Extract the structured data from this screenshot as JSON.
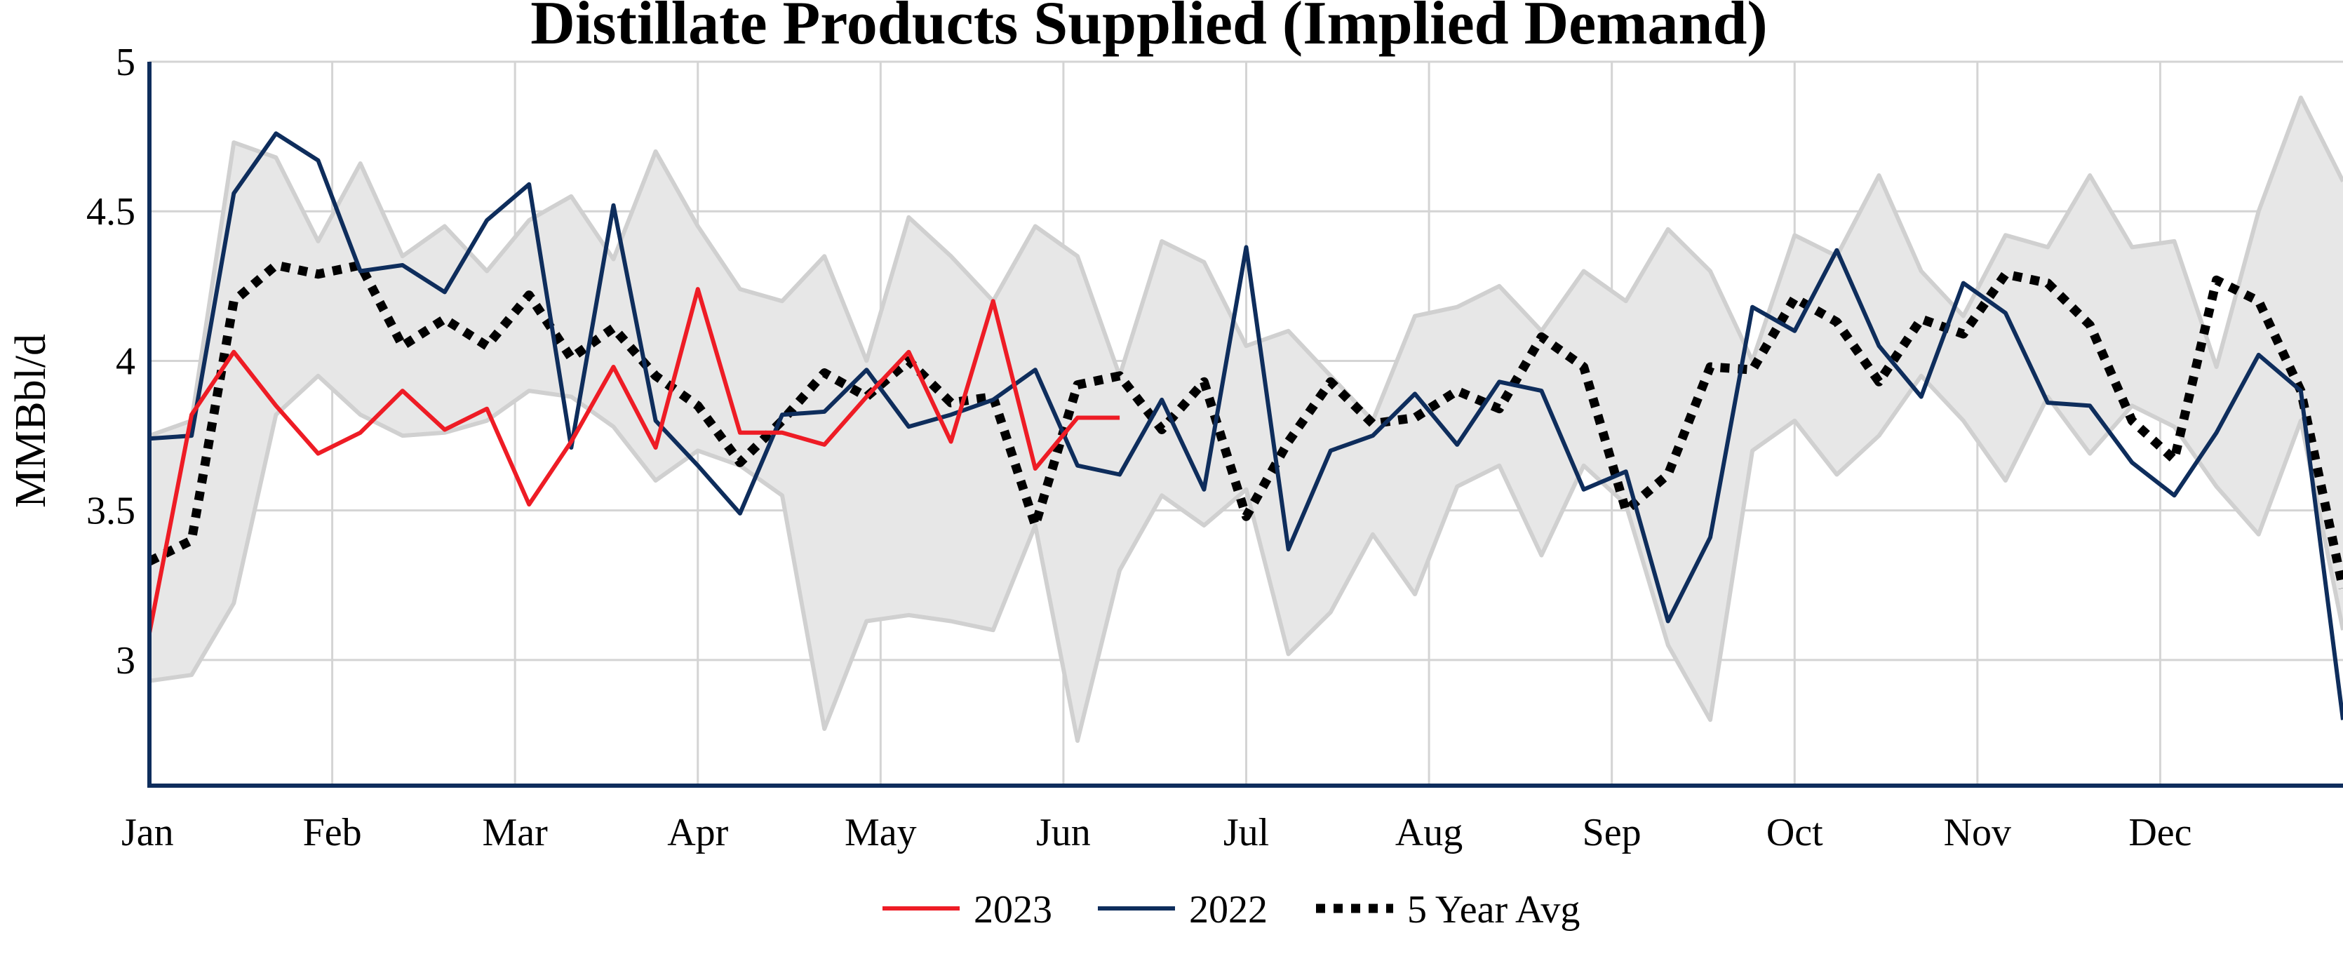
{
  "chart_data": {
    "type": "line",
    "title": "Distillate Products Supplied (Implied Demand)",
    "xlabel": "",
    "ylabel": "MMBbl/d",
    "x_ticks": [
      "Jan",
      "Feb",
      "Mar",
      "Apr",
      "May",
      "Jun",
      "Jul",
      "Aug",
      "Sep",
      "Oct",
      "Nov",
      "Dec"
    ],
    "y_ticks": [
      "3",
      "3.5",
      "4",
      "4.5",
      "5"
    ],
    "x_unit": "week of year",
    "xlim": [
      1,
      53
    ],
    "ylim": [
      2.58,
      5.0
    ],
    "grid": true,
    "legend_position": "bottom",
    "band": {
      "x": [
        1,
        2,
        3,
        4,
        5,
        6,
        7,
        8,
        9,
        10,
        11,
        12,
        13,
        14,
        15,
        16,
        17,
        18,
        19,
        20,
        21,
        22,
        23,
        24,
        25,
        26,
        27,
        28,
        29,
        30,
        31,
        32,
        33,
        34,
        35,
        36,
        37,
        38,
        39,
        40,
        41,
        42,
        43,
        44,
        45,
        46,
        47,
        48,
        49,
        50,
        51,
        52,
        53
      ],
      "upper": [
        3.75,
        3.8,
        4.73,
        4.68,
        4.4,
        4.66,
        4.35,
        4.45,
        4.3,
        4.47,
        4.55,
        4.34,
        4.7,
        4.45,
        4.24,
        4.2,
        4.35,
        4.0,
        4.48,
        4.35,
        4.2,
        4.45,
        4.35,
        3.95,
        4.4,
        4.33,
        4.05,
        4.1,
        3.95,
        3.8,
        4.15,
        4.18,
        4.25,
        4.1,
        4.3,
        4.2,
        4.44,
        4.3,
        4.0,
        4.42,
        4.35,
        4.62,
        4.3,
        4.15,
        4.42,
        4.38,
        4.62,
        4.38,
        4.4,
        3.98,
        4.5,
        4.88,
        4.6
      ],
      "lower": [
        2.93,
        2.95,
        3.19,
        3.82,
        3.95,
        3.82,
        3.75,
        3.76,
        3.8,
        3.9,
        3.88,
        3.78,
        3.6,
        3.7,
        3.65,
        3.55,
        2.77,
        3.13,
        3.15,
        3.13,
        3.1,
        3.45,
        2.73,
        3.3,
        3.55,
        3.45,
        3.57,
        3.02,
        3.16,
        3.42,
        3.22,
        3.58,
        3.65,
        3.35,
        3.65,
        3.52,
        3.05,
        2.8,
        3.7,
        3.8,
        3.62,
        3.75,
        3.95,
        3.8,
        3.6,
        3.88,
        3.69,
        3.85,
        3.78,
        3.58,
        3.42,
        3.8,
        3.1
      ]
    },
    "series": [
      {
        "name": "2023",
        "color": "#ee1c25",
        "style": "solid",
        "x": [
          1,
          2,
          3,
          4,
          5,
          6,
          7,
          8,
          9,
          10,
          11,
          12,
          13,
          14,
          15,
          16,
          17,
          18,
          19,
          20,
          21,
          22,
          23,
          24
        ],
        "values": [
          3.09,
          3.82,
          4.03,
          3.85,
          3.69,
          3.76,
          3.9,
          3.77,
          3.84,
          3.52,
          3.73,
          3.98,
          3.71,
          4.24,
          3.76,
          3.76,
          3.72,
          3.88,
          4.03,
          3.73,
          4.2,
          3.64,
          3.81,
          3.81
        ]
      },
      {
        "name": "2022",
        "color": "#0e2d5c",
        "style": "solid",
        "x": [
          1,
          2,
          3,
          4,
          5,
          6,
          7,
          8,
          9,
          10,
          11,
          12,
          13,
          14,
          15,
          16,
          17,
          18,
          19,
          20,
          21,
          22,
          23,
          24,
          25,
          26,
          27,
          28,
          29,
          30,
          31,
          32,
          33,
          34,
          35,
          36,
          37,
          38,
          39,
          40,
          41,
          42,
          43,
          44,
          45,
          46,
          47,
          48,
          49,
          50,
          51,
          52,
          53
        ],
        "values": [
          3.74,
          3.75,
          4.56,
          4.76,
          4.67,
          4.3,
          4.32,
          4.23,
          4.47,
          4.59,
          3.71,
          4.52,
          3.8,
          3.65,
          3.49,
          3.82,
          3.83,
          3.97,
          3.78,
          3.82,
          3.87,
          3.97,
          3.65,
          3.62,
          3.87,
          3.57,
          4.38,
          3.37,
          3.7,
          3.75,
          3.89,
          3.72,
          3.93,
          3.9,
          3.57,
          3.63,
          3.13,
          3.41,
          4.18,
          4.1,
          4.37,
          4.05,
          3.88,
          4.26,
          4.16,
          3.86,
          3.85,
          3.66,
          3.55,
          3.76,
          4.02,
          3.9,
          2.8
        ]
      },
      {
        "name": "5 Year Avg",
        "color": "#000000",
        "style": "dotted",
        "x": [
          1,
          2,
          3,
          4,
          5,
          6,
          7,
          8,
          9,
          10,
          11,
          12,
          13,
          14,
          15,
          16,
          17,
          18,
          19,
          20,
          21,
          22,
          23,
          24,
          25,
          26,
          27,
          28,
          29,
          30,
          31,
          32,
          33,
          34,
          35,
          36,
          37,
          38,
          39,
          40,
          41,
          42,
          43,
          44,
          45,
          46,
          47,
          48,
          49,
          50,
          51,
          52,
          53
        ],
        "values": [
          3.33,
          3.4,
          4.2,
          4.32,
          4.29,
          4.32,
          4.05,
          4.14,
          4.05,
          4.22,
          4.01,
          4.11,
          3.95,
          3.85,
          3.66,
          3.8,
          3.96,
          3.88,
          4.0,
          3.86,
          3.88,
          3.45,
          3.92,
          3.95,
          3.77,
          3.93,
          3.48,
          3.73,
          3.93,
          3.79,
          3.81,
          3.9,
          3.84,
          4.08,
          3.98,
          3.5,
          3.62,
          3.98,
          3.97,
          4.21,
          4.13,
          3.93,
          4.14,
          4.09,
          4.29,
          4.26,
          4.12,
          3.8,
          3.67,
          4.27,
          4.2,
          3.9,
          3.24
        ]
      }
    ]
  }
}
